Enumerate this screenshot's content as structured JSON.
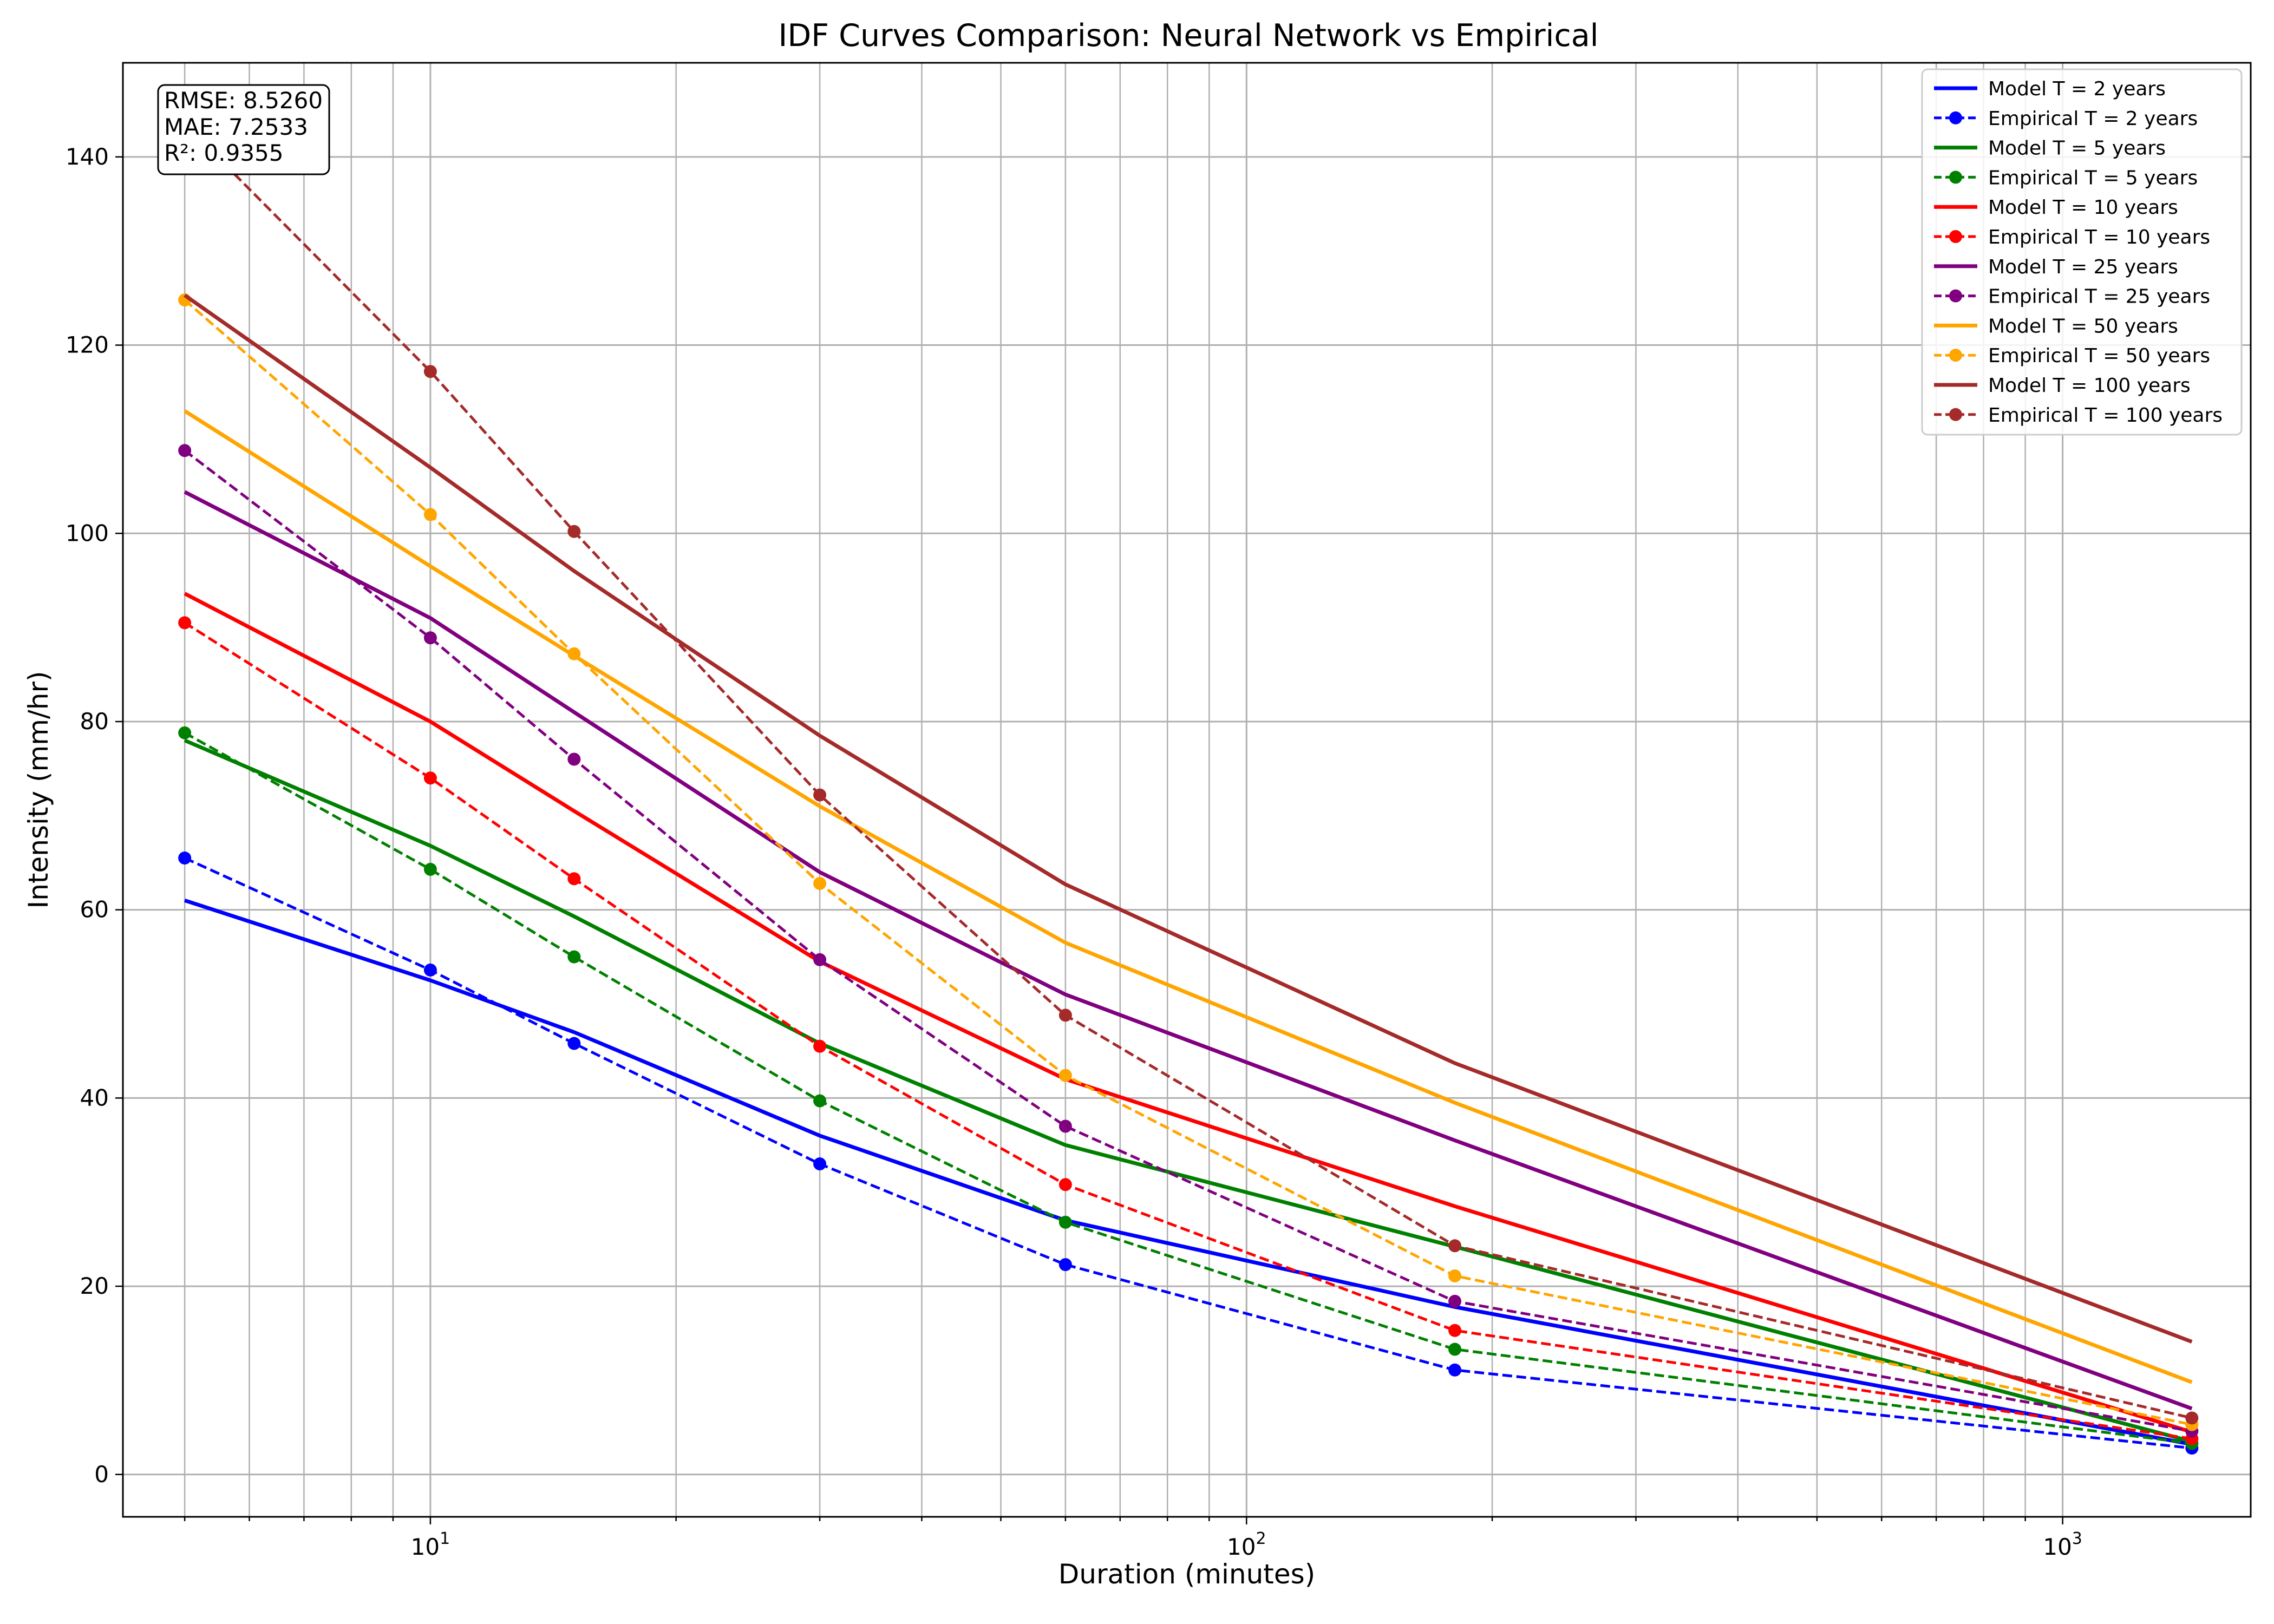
{
  "chart_data": {
    "type": "line",
    "title": "IDF Curves Comparison: Neural Network vs Empirical",
    "xlabel": "Duration (minutes)",
    "ylabel": "Intensity (mm/hr)",
    "x_scale": "log",
    "xlim": [
      4.2,
      1700
    ],
    "ylim": [
      -4.5,
      150
    ],
    "grid": true,
    "grid_minor_x": true,
    "legend_position": "top-right",
    "x_ticks": [
      {
        "value": 10,
        "base": "10",
        "exp": "1"
      },
      {
        "value": 100,
        "base": "10",
        "exp": "2"
      },
      {
        "value": 1000,
        "base": "10",
        "exp": "3"
      }
    ],
    "y_ticks": [
      {
        "value": 0,
        "label": "0"
      },
      {
        "value": 20,
        "label": "20"
      },
      {
        "value": 40,
        "label": "40"
      },
      {
        "value": 60,
        "label": "60"
      },
      {
        "value": 80,
        "label": "80"
      },
      {
        "value": 100,
        "label": "100"
      },
      {
        "value": 120,
        "label": "120"
      },
      {
        "value": 140,
        "label": "140"
      }
    ],
    "x": [
      5,
      10,
      15,
      30,
      60,
      180,
      1440
    ],
    "series": [
      {
        "name": "Model T = 2 years",
        "color": "#0000ff",
        "style": "solid",
        "values": [
          61.0,
          52.5,
          47.0,
          36.0,
          27.0,
          17.8,
          3.2
        ]
      },
      {
        "name": "Empirical T = 2 years",
        "color": "#0000ff",
        "style": "dashed",
        "values": [
          65.5,
          53.6,
          45.8,
          33.0,
          22.3,
          11.1,
          2.8
        ]
      },
      {
        "name": "Model T = 5 years",
        "color": "#008000",
        "style": "solid",
        "values": [
          78.0,
          66.8,
          59.3,
          45.8,
          35.0,
          24.2,
          3.5
        ]
      },
      {
        "name": "Empirical T = 5 years",
        "color": "#008000",
        "style": "dashed",
        "values": [
          78.8,
          64.3,
          55.0,
          39.7,
          26.8,
          13.3,
          3.3
        ]
      },
      {
        "name": "Model T = 10 years",
        "color": "#ff0000",
        "style": "solid",
        "values": [
          93.6,
          80.0,
          70.5,
          54.5,
          42.0,
          28.5,
          4.5
        ]
      },
      {
        "name": "Empirical T = 10 years",
        "color": "#ff0000",
        "style": "dashed",
        "values": [
          90.5,
          74.0,
          63.3,
          45.5,
          30.8,
          15.3,
          3.8
        ]
      },
      {
        "name": "Model T = 25 years",
        "color": "#800080",
        "style": "solid",
        "values": [
          104.4,
          91.0,
          81.0,
          64.0,
          51.0,
          35.5,
          7.0
        ]
      },
      {
        "name": "Empirical T = 25 years",
        "color": "#800080",
        "style": "dashed",
        "values": [
          108.8,
          88.9,
          76.0,
          54.7,
          37.0,
          18.4,
          4.6
        ]
      },
      {
        "name": "Model T = 50 years",
        "color": "#ffa500",
        "style": "solid",
        "values": [
          113.0,
          96.5,
          87.0,
          71.0,
          56.5,
          39.5,
          9.8
        ]
      },
      {
        "name": "Empirical T = 50 years",
        "color": "#ffa500",
        "style": "dashed",
        "values": [
          124.8,
          102.0,
          87.2,
          62.8,
          42.4,
          21.1,
          5.3
        ]
      },
      {
        "name": "Model T = 100 years",
        "color": "#a52a2a",
        "style": "solid",
        "values": [
          125.3,
          107.0,
          96.0,
          78.5,
          62.7,
          43.7,
          14.1
        ]
      },
      {
        "name": "Empirical T = 100 years",
        "color": "#a52a2a",
        "style": "dashed",
        "values": [
          143.5,
          117.2,
          100.2,
          72.2,
          48.8,
          24.3,
          6.0
        ]
      }
    ],
    "annotation": [
      "RMSE: 8.5260",
      "MAE: 7.2533",
      "R²: 0.9355"
    ]
  }
}
